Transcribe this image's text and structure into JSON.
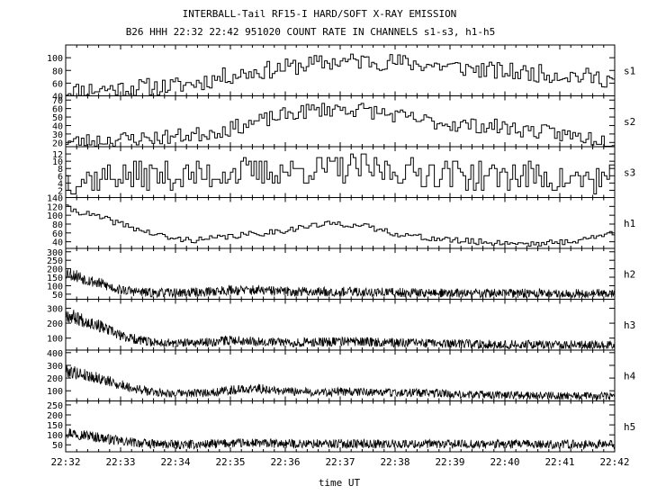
{
  "title": "INTERBALL-Tail RF15-I HARD/SOFT X-RAY EMISSION",
  "subtitle": "B26 HHH 22:32 22:42 951020  COUNT RATE IN CHANNELS s1-s3, h1-h5",
  "xlabel": "time UT",
  "xticks": [
    "22:32",
    "22:33",
    "22:34",
    "22:35",
    "22:36",
    "22:37",
    "22:38",
    "22:39",
    "22:40",
    "22:41",
    "22:42"
  ],
  "chart_data": {
    "type": "line",
    "title": "INTERBALL-Tail RF15-I HARD/SOFT X-RAY EMISSION",
    "subtitle": "B26 HHH 22:32 22:42 951020  COUNT RATE IN CHANNELS s1-s3, h1-h5",
    "xlabel": "time UT",
    "x_range": [
      "22:32",
      "22:42"
    ],
    "grid": false,
    "x_minutes": [
      0,
      0.5,
      1,
      1.5,
      2,
      2.5,
      3,
      3.5,
      4,
      4.5,
      5,
      5.5,
      6,
      6.5,
      7,
      7.5,
      8,
      8.5,
      9,
      9.5,
      10
    ],
    "panels": [
      {
        "name": "s1",
        "ylim": [
          40,
          120
        ],
        "ticks": [
          40,
          60,
          80,
          100
        ],
        "noise": 14,
        "seed": 11,
        "values": [
          47,
          50,
          52,
          54,
          55,
          62,
          72,
          78,
          84,
          90,
          94,
          95,
          93,
          90,
          86,
          82,
          78,
          76,
          74,
          70,
          66
        ]
      },
      {
        "name": "s2",
        "ylim": [
          15,
          75
        ],
        "ticks": [
          20,
          30,
          40,
          50,
          60,
          70
        ],
        "noise": 9,
        "seed": 23,
        "values": [
          20,
          22,
          24,
          25,
          27,
          30,
          36,
          44,
          52,
          58,
          60,
          58,
          52,
          46,
          42,
          40,
          38,
          34,
          30,
          26,
          22
        ]
      },
      {
        "name": "s3",
        "ylim": [
          0,
          14
        ],
        "ticks": [
          2,
          4,
          6,
          8,
          10,
          12
        ],
        "noise": 4,
        "seed": 37,
        "values": [
          5,
          5,
          6,
          6,
          6,
          6,
          7,
          7,
          7,
          8,
          8,
          8,
          7,
          7,
          7,
          6,
          6,
          6,
          5,
          5,
          5
        ]
      },
      {
        "name": "h1",
        "ylim": [
          25,
          140
        ],
        "ticks": [
          40,
          60,
          80,
          100,
          120,
          140
        ],
        "noise": 7,
        "seed": 41,
        "values": [
          118,
          100,
          82,
          62,
          46,
          44,
          52,
          58,
          66,
          76,
          82,
          74,
          60,
          50,
          44,
          40,
          38,
          36,
          38,
          46,
          60
        ]
      },
      {
        "name": "h2",
        "ylim": [
          20,
          320
        ],
        "ticks": [
          50,
          100,
          150,
          200,
          250,
          300
        ],
        "noise": 35,
        "seed": 53,
        "values": [
          180,
          125,
          75,
          58,
          58,
          62,
          75,
          72,
          66,
          65,
          65,
          62,
          60,
          58,
          56,
          55,
          55,
          55,
          54,
          54,
          55
        ]
      },
      {
        "name": "h3",
        "ylim": [
          20,
          360
        ],
        "ticks": [
          100,
          200,
          300
        ],
        "noise": 38,
        "seed": 67,
        "values": [
          260,
          200,
          115,
          75,
          65,
          70,
          88,
          80,
          72,
          72,
          78,
          75,
          70,
          65,
          62,
          60,
          58,
          58,
          57,
          56,
          56
        ]
      },
      {
        "name": "h4",
        "ylim": [
          20,
          420
        ],
        "ticks": [
          100,
          200,
          300,
          400
        ],
        "noise": 42,
        "seed": 79,
        "values": [
          260,
          210,
          145,
          95,
          78,
          82,
          105,
          118,
          95,
          88,
          92,
          90,
          86,
          82,
          76,
          70,
          66,
          62,
          60,
          58,
          58
        ]
      },
      {
        "name": "h5",
        "ylim": [
          15,
          270
        ],
        "ticks": [
          50,
          100,
          150,
          200,
          250
        ],
        "noise": 28,
        "seed": 97,
        "values": [
          115,
          92,
          68,
          55,
          50,
          52,
          58,
          58,
          55,
          55,
          56,
          55,
          54,
          54,
          53,
          53,
          53,
          52,
          52,
          52,
          52
        ]
      }
    ]
  }
}
